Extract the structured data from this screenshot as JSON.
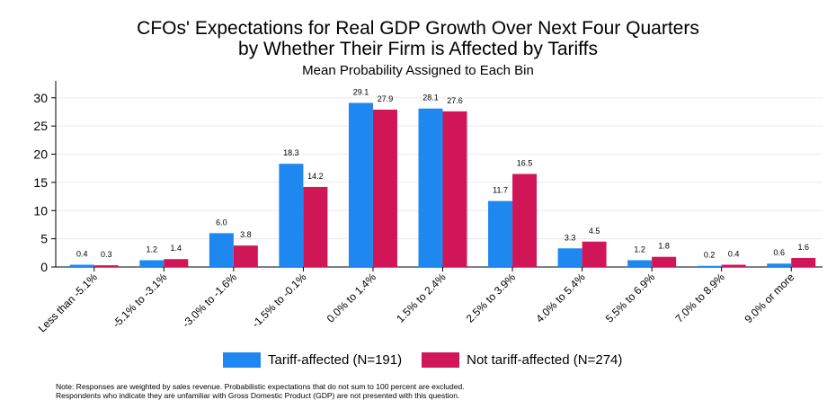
{
  "chart_data": {
    "type": "bar",
    "title_line1": "CFOs' Expectations for Real GDP Growth Over Next Four Quarters",
    "title_line2": "by Whether Their Firm is Affected by Tariffs",
    "subtitle": "Mean Probability Assigned to Each Bin",
    "categories": [
      "Less than -5.1%",
      "-5.1% to -3.1%",
      "-3.0% to -1.6%",
      "-1.5% to -0.1%",
      "0.0% to 1.4%",
      "1.5% to 2.4%",
      "2.5% to 3.9%",
      "4.0% to 5.4%",
      "5.5% to 6.9%",
      "7.0% to 8.9%",
      "9.0% or more"
    ],
    "series": [
      {
        "name": "Tariff-affected (N=191)",
        "color": "#1e88f0",
        "values": [
          0.4,
          1.2,
          6.0,
          18.3,
          29.1,
          28.1,
          11.7,
          3.3,
          1.2,
          0.2,
          0.6
        ],
        "labels": [
          "0.4",
          "1.2",
          "6.0",
          "18.3",
          "29.1",
          "28.1",
          "11.7",
          "3.3",
          "1.2",
          "0.2",
          "0.6"
        ]
      },
      {
        "name": "Not tariff-affected (N=274)",
        "color": "#d01657",
        "values": [
          0.3,
          1.4,
          3.8,
          14.2,
          27.9,
          27.6,
          16.5,
          4.5,
          1.8,
          0.4,
          1.6
        ],
        "labels": [
          "0.3",
          "1.4",
          "3.8",
          "14.2",
          "27.9",
          "27.6",
          "16.5",
          "4.5",
          "1.8",
          "0.4",
          "1.6"
        ]
      }
    ],
    "yticks": [
      0,
      5,
      10,
      15,
      20,
      25,
      30
    ],
    "ylim": [
      0,
      33
    ],
    "xlabel": "",
    "ylabel": "",
    "grid": true,
    "legend_position": "bottom"
  },
  "note_line1": "Note: Responses are weighted by sales revenue. Probabilistic expectations that do not sum to 100 percent are excluded.",
  "note_line2": "Respondents who indicate they are unfamiliar with Gross Domestic Product (GDP) are not presented with this question."
}
